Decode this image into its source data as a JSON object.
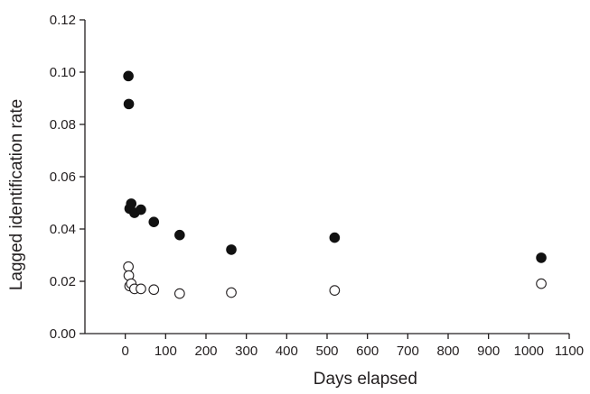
{
  "chart_data": {
    "type": "scatter",
    "title": "",
    "xlabel": "Days elapsed",
    "ylabel": "Lagged identification rate",
    "xlim": [
      -100,
      1100
    ],
    "ylim": [
      0.0,
      0.12
    ],
    "xticks": [
      0,
      100,
      200,
      300,
      400,
      500,
      600,
      700,
      800,
      900,
      1000,
      1100
    ],
    "yticks": [
      0.0,
      0.02,
      0.04,
      0.06,
      0.08,
      0.1,
      0.12
    ],
    "xtick_labels": [
      "0",
      "100",
      "200",
      "300",
      "400",
      "500",
      "600",
      "700",
      "800",
      "900",
      "1000",
      "1100"
    ],
    "ytick_labels": [
      "0.00",
      "0.02",
      "0.04",
      "0.06",
      "0.08",
      "0.10",
      "0.12"
    ],
    "grid": false,
    "legend": "none",
    "series": [
      {
        "marker": "filled-circle",
        "color": "#111111",
        "points": [
          {
            "x": 1,
            "y": 0.0985
          },
          {
            "x": 2,
            "y": 0.0878
          },
          {
            "x": 4,
            "y": 0.0478
          },
          {
            "x": 8,
            "y": 0.0497
          },
          {
            "x": 16,
            "y": 0.0462
          },
          {
            "x": 32,
            "y": 0.0474
          },
          {
            "x": 64,
            "y": 0.0427
          },
          {
            "x": 128,
            "y": 0.0377
          },
          {
            "x": 256,
            "y": 0.0321
          },
          {
            "x": 512,
            "y": 0.0367
          },
          {
            "x": 1024,
            "y": 0.029
          }
        ]
      },
      {
        "marker": "open-circle",
        "color": "#231f20",
        "points": [
          {
            "x": 1,
            "y": 0.0256
          },
          {
            "x": 2,
            "y": 0.0222
          },
          {
            "x": 4,
            "y": 0.0182
          },
          {
            "x": 8,
            "y": 0.0191
          },
          {
            "x": 16,
            "y": 0.0171
          },
          {
            "x": 32,
            "y": 0.0171
          },
          {
            "x": 64,
            "y": 0.0168
          },
          {
            "x": 128,
            "y": 0.0153
          },
          {
            "x": 256,
            "y": 0.0157
          },
          {
            "x": 512,
            "y": 0.0165
          },
          {
            "x": 1024,
            "y": 0.0191
          }
        ]
      }
    ]
  }
}
